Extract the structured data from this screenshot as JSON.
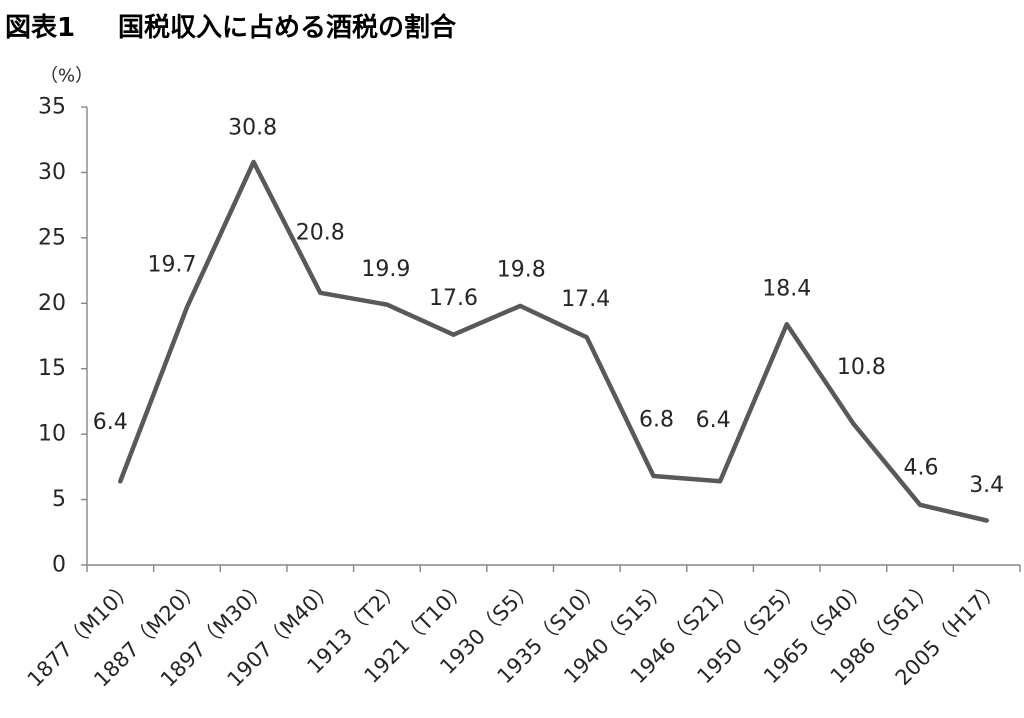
{
  "chart_data": {
    "type": "line",
    "figure_label": "図表1",
    "title": "国税収入に占める酒税の割合",
    "ylabel": "（%）",
    "ylim": [
      0,
      35
    ],
    "yticks": [
      0,
      5,
      10,
      15,
      20,
      25,
      30,
      35
    ],
    "grid": false,
    "categories": [
      "1877（M10）",
      "1887（M20）",
      "1897（M30）",
      "1907（M40）",
      "1913（T2）",
      "1921（T10）",
      "1930（S5）",
      "1935（S10）",
      "1940（S15）",
      "1946（S21）",
      "1950（S25）",
      "1965（S40）",
      "1986（S61）",
      "2005（H17）"
    ],
    "series": [
      {
        "values": [
          6.4,
          19.7,
          30.8,
          20.8,
          19.9,
          17.6,
          19.8,
          17.4,
          6.8,
          6.4,
          18.4,
          10.8,
          4.6,
          3.4
        ],
        "color": "#595959"
      }
    ],
    "colors": {
      "axis": "#868686",
      "text": "#262626",
      "title": "#000000"
    }
  }
}
